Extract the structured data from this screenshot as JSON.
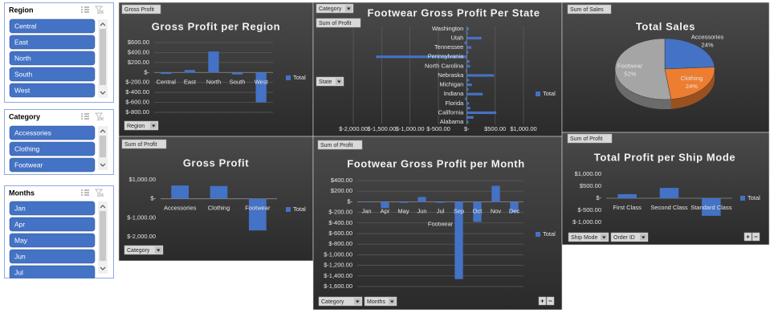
{
  "slicers": [
    {
      "title": "Region",
      "items": [
        "Central",
        "East",
        "North",
        "South",
        "West"
      ]
    },
    {
      "title": "Category",
      "items": [
        "Accessories",
        "Clothing",
        "Footwear"
      ]
    },
    {
      "title": "Months",
      "items": [
        "Jan",
        "Apr",
        "May",
        "Jun",
        "Jul"
      ]
    }
  ],
  "chart_data": [
    {
      "type": "bar",
      "title": "Gross Profit per Region",
      "buttons": [
        "Gross Profit",
        "Region"
      ],
      "categories": [
        "Central",
        "East",
        "North",
        "South",
        "West"
      ],
      "series": [
        {
          "name": "Total",
          "color": "#4472c4",
          "values": [
            -30,
            50,
            420,
            -40,
            -600
          ]
        }
      ],
      "ylim": [
        -800,
        600
      ],
      "yticks": [
        {
          "value": 600,
          "label": "$600.00"
        },
        {
          "value": 400,
          "label": "$400.00"
        },
        {
          "value": 200,
          "label": "$200.00"
        },
        {
          "value": 0,
          "label": "$-"
        },
        {
          "value": -200,
          "label": "$-200.00"
        },
        {
          "value": -400,
          "label": "$-400.00"
        },
        {
          "value": -600,
          "label": "$-600.00"
        },
        {
          "value": -800,
          "label": "$-800.00"
        }
      ],
      "grid": true,
      "legend": "right"
    },
    {
      "type": "bar",
      "title": "Gross Profit",
      "buttons": [
        "Sum of Profit",
        "Category"
      ],
      "categories": [
        "Accessories",
        "Clothing",
        "Footwear"
      ],
      "series": [
        {
          "name": "Total",
          "color": "#4472c4",
          "values": [
            700,
            670,
            -1670
          ]
        }
      ],
      "ylim": [
        -2000,
        1000
      ],
      "yticks": [
        {
          "value": 1000,
          "label": "$1,000.00"
        },
        {
          "value": 0,
          "label": "$-"
        },
        {
          "value": -1000,
          "label": "$-1,000.00"
        },
        {
          "value": -2000,
          "label": "$-2,000.00"
        }
      ],
      "grid": false,
      "legend": "right"
    },
    {
      "type": "hbar",
      "title": "Footwear Gross Profit Per State",
      "buttons": [
        "Category",
        "Sum of Profit",
        "State"
      ],
      "categories": [
        "Washington",
        null,
        "Utah",
        null,
        "Tennessee",
        null,
        "Pennsylvania",
        null,
        "North Carolina",
        null,
        "Nebraska",
        null,
        "Michigan",
        null,
        "Indiana",
        null,
        "Florida",
        null,
        "California",
        null,
        "Alabama"
      ],
      "series": [
        {
          "name": "Total",
          "color": "#4472c4",
          "values": [
            40,
            20,
            260,
            -40,
            80,
            30,
            -1600,
            50,
            60,
            -20,
            480,
            40,
            90,
            30,
            280,
            -30,
            40,
            60,
            520,
            120,
            30
          ]
        }
      ],
      "xlim": [
        -2000,
        1000
      ],
      "xticks": [
        {
          "value": -2000,
          "label": "$-2,000.00"
        },
        {
          "value": -1500,
          "label": "$-1,500.00"
        },
        {
          "value": -1000,
          "label": "$-1,000.00"
        },
        {
          "value": -500,
          "label": "$-500.00"
        },
        {
          "value": 0,
          "label": "$-"
        },
        {
          "value": 500,
          "label": "$500.00"
        },
        {
          "value": 1000,
          "label": "$1,000.00"
        }
      ],
      "grid": true,
      "legend": "right"
    },
    {
      "type": "bar",
      "title": "Footwear Gross Profit per Month",
      "buttons": [
        "Sum of Profit",
        "Category",
        "Months"
      ],
      "categories": [
        "Jan",
        "Apr",
        "May",
        "Jun",
        "Jul",
        "Sep",
        "Oct",
        "Nov",
        "Dec"
      ],
      "x_group_label": "Footwear",
      "series": [
        {
          "name": "Total",
          "color": "#4472c4",
          "values": [
            -10,
            -120,
            -20,
            90,
            -20,
            -1460,
            -380,
            300,
            -200
          ]
        }
      ],
      "ylim": [
        -1600,
        400
      ],
      "yticks": [
        {
          "value": 400,
          "label": "$400.00"
        },
        {
          "value": 200,
          "label": "$200.00"
        },
        {
          "value": 0,
          "label": "$-"
        },
        {
          "value": -200,
          "label": "$-200.00"
        },
        {
          "value": -400,
          "label": "$-400.00"
        },
        {
          "value": -600,
          "label": "$-600.00"
        },
        {
          "value": -800,
          "label": "$-800.00"
        },
        {
          "value": -1000,
          "label": "$-1,000.00"
        },
        {
          "value": -1200,
          "label": "$-1,200.00"
        },
        {
          "value": -1400,
          "label": "$-1,400.00"
        },
        {
          "value": -1600,
          "label": "$-1,600.00"
        }
      ],
      "grid": true,
      "legend": "right"
    },
    {
      "type": "pie",
      "title": "Total Sales",
      "buttons": [
        "Sum of Sales"
      ],
      "categories": [
        "Accessories",
        "Clothing",
        "Footwear"
      ],
      "values": [
        24,
        24,
        52
      ],
      "value_labels": [
        "24%",
        "24%",
        "52%"
      ],
      "colors": [
        "#4472c4",
        "#ed7d31",
        "#a5a5a5"
      ]
    },
    {
      "type": "bar",
      "title": "Total Profit per Ship Mode",
      "buttons": [
        "Sum of Profit",
        "Ship Mode",
        "Order ID"
      ],
      "categories": [
        "First Class",
        "Second Class",
        "Standard Class"
      ],
      "series": [
        {
          "name": "Total",
          "color": "#4472c4",
          "values": [
            170,
            430,
            -730
          ]
        }
      ],
      "ylim": [
        -1000,
        1000
      ],
      "yticks": [
        {
          "value": 1000,
          "label": "$1,000.00"
        },
        {
          "value": 500,
          "label": "$500.00"
        },
        {
          "value": 0,
          "label": "$-"
        },
        {
          "value": -500,
          "label": "$-500.00"
        },
        {
          "value": -1000,
          "label": "$-1,000.00"
        }
      ],
      "grid": false,
      "legend": "right"
    }
  ]
}
